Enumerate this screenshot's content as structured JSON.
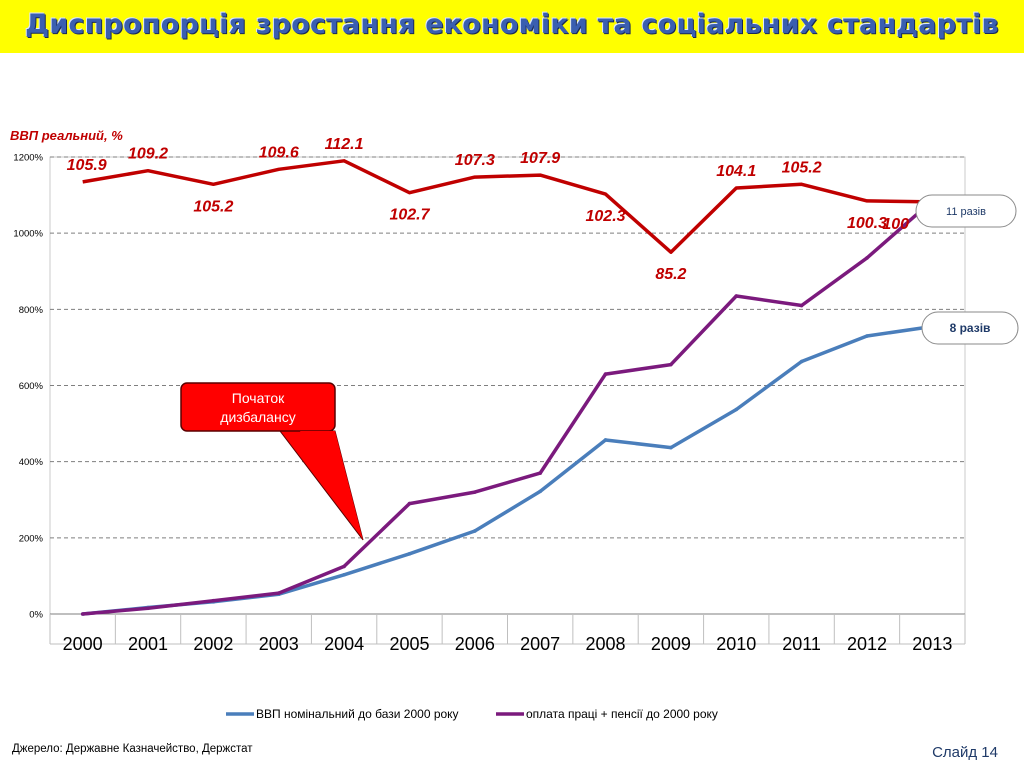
{
  "page": {
    "title": "Диспропорція зростання економіки та соціальних стандартів",
    "source": "Джерело: Державне Казначейство, Держстат",
    "slide_number": "Слайд 14"
  },
  "chart_data": {
    "type": "line",
    "categories": [
      "2000",
      "2001",
      "2002",
      "2003",
      "2004",
      "2005",
      "2006",
      "2007",
      "2008",
      "2009",
      "2010",
      "2011",
      "2012",
      "2013"
    ],
    "y_axis": {
      "min": 0,
      "max": 1200,
      "step": 200,
      "tick_labels": [
        "0%",
        "200%",
        "400%",
        "600%",
        "800%",
        "1000%",
        "1200%"
      ],
      "grid": "dashed"
    },
    "series": [
      {
        "name": "ВВП номінальний до бази 2000 року",
        "color": "#4a7ebb",
        "values": [
          0,
          17,
          32,
          52,
          103,
          158,
          218,
          322,
          457,
          437,
          537,
          663,
          730,
          755
        ]
      },
      {
        "name": "оплата праці + пенсії до 2000 року",
        "color": "#7b1a7d",
        "values": [
          0,
          15,
          35,
          55,
          125,
          290,
          320,
          370,
          630,
          655,
          835,
          810,
          935,
          1085
        ]
      }
    ],
    "overlay_series": {
      "name": "ВВП реальний, %",
      "color": "#c00000",
      "values": [
        105.9,
        109.2,
        105.2,
        109.6,
        112.1,
        102.7,
        107.3,
        107.9,
        102.3,
        85.2,
        104.1,
        105.2,
        100.3,
        100
      ],
      "label_position": [
        "above",
        "above",
        "below",
        "above",
        "above",
        "below",
        "above",
        "above",
        "below",
        "below",
        "above",
        "above",
        "below",
        "below"
      ],
      "scale": {
        "value_min": 85.2,
        "value_max": 112.1,
        "plot_min_pct": 950,
        "plot_max_pct": 1190
      }
    },
    "annotations": {
      "callout": "Початок дизбалансу",
      "ratio_purple": "11 разів",
      "ratio_blue": "8 разів"
    }
  }
}
